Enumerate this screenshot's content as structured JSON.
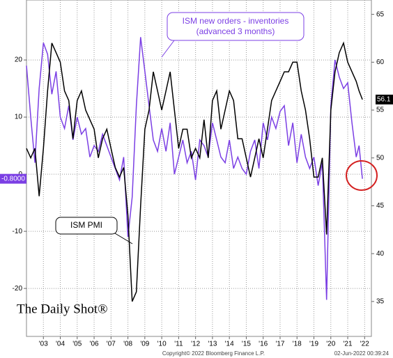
{
  "chart_data": {
    "type": "line",
    "annotations": {
      "series_callout": [
        "ISM new orders - inventories",
        "(advanced 3 months)"
      ],
      "pmi_callout": "ISM PMI",
      "brand": "The Daily Shot®",
      "copyright": "Copyright© 2022 Bloomberg Finance L.P.",
      "timestamp": "02-Jun-2022 00:39:24"
    },
    "x": [
      2002.5,
      2002.75,
      2003,
      2003.25,
      2003.5,
      2003.75,
      2004,
      2004.25,
      2004.5,
      2004.75,
      2005,
      2005.25,
      2005.5,
      2005.75,
      2006,
      2006.25,
      2006.5,
      2006.75,
      2007,
      2007.25,
      2007.5,
      2007.75,
      2008,
      2008.25,
      2008.5,
      2008.75,
      2009,
      2009.25,
      2009.5,
      2009.75,
      2010,
      2010.25,
      2010.5,
      2010.75,
      2011,
      2011.25,
      2011.5,
      2011.75,
      2012,
      2012.25,
      2012.5,
      2012.75,
      2013,
      2013.25,
      2013.5,
      2013.75,
      2014,
      2014.25,
      2014.5,
      2014.75,
      2015,
      2015.25,
      2015.5,
      2015.75,
      2016,
      2016.25,
      2016.5,
      2016.75,
      2017,
      2017.25,
      2017.5,
      2017.75,
      2018,
      2018.25,
      2018.5,
      2018.75,
      2019,
      2019.25,
      2019.5,
      2019.75,
      2020,
      2020.25,
      2020.5,
      2020.75,
      2021,
      2021.25,
      2021.5,
      2021.75,
      2022,
      2022.17,
      2022.37
    ],
    "series": [
      {
        "name": "ISM new orders - inventories (advanced 3 months)",
        "color": "#7b3fe4",
        "axis": "y",
        "end_label": "-0.8000",
        "values": [
          19,
          10,
          2,
          15,
          23,
          21,
          14,
          18,
          10,
          8,
          12,
          6,
          10,
          7,
          8,
          3,
          5,
          4,
          7,
          5,
          3,
          1,
          -1,
          3,
          -11,
          -4,
          12,
          24,
          18,
          12,
          6,
          4,
          8,
          4,
          9,
          0,
          3,
          6,
          2,
          4,
          -1,
          6,
          5,
          3,
          9,
          6,
          3,
          2,
          6,
          1,
          3,
          1,
          0,
          4,
          6,
          1,
          9,
          6,
          10,
          8,
          11,
          12,
          5,
          9,
          2,
          7,
          3,
          1,
          3,
          -2,
          2,
          -22,
          12,
          20,
          17,
          15,
          16,
          9,
          3,
          5,
          -0.8
        ]
      },
      {
        "name": "ISM PMI",
        "color": "#000000",
        "axis": "y2",
        "end_label": "56.1",
        "values": [
          51,
          50,
          51,
          46,
          51,
          57,
          62,
          61,
          60,
          57,
          56,
          52,
          56,
          57,
          55,
          54,
          53,
          50,
          52,
          53,
          51,
          49,
          48,
          49,
          44,
          35,
          36,
          45,
          53,
          55,
          59,
          57,
          55,
          57,
          59,
          55,
          51,
          53,
          53,
          50,
          51,
          50,
          54,
          50,
          56,
          57,
          53,
          55,
          57,
          56,
          52,
          52,
          50,
          48,
          50,
          52,
          50,
          53,
          56,
          57,
          58,
          59,
          59,
          60,
          60,
          57,
          55,
          52,
          48,
          48,
          50,
          42,
          55,
          59,
          61,
          62,
          60,
          59,
          58,
          57,
          56.1
        ]
      }
    ],
    "xlim": [
      2002.5,
      2022.9
    ],
    "xticks": [
      {
        "value": 2003.5,
        "label": "'03"
      },
      {
        "value": 2004.5,
        "label": "'04"
      },
      {
        "value": 2005.5,
        "label": "'05"
      },
      {
        "value": 2006.5,
        "label": "'06"
      },
      {
        "value": 2007.5,
        "label": "'07"
      },
      {
        "value": 2008.5,
        "label": "'08"
      },
      {
        "value": 2009.5,
        "label": "'09"
      },
      {
        "value": 2010.5,
        "label": "'10"
      },
      {
        "value": 2011.5,
        "label": "'11"
      },
      {
        "value": 2012.5,
        "label": "'12"
      },
      {
        "value": 2013.5,
        "label": "'13"
      },
      {
        "value": 2014.5,
        "label": "'14"
      },
      {
        "value": 2015.5,
        "label": "'15"
      },
      {
        "value": 2016.5,
        "label": "'16"
      },
      {
        "value": 2017.5,
        "label": "'17"
      },
      {
        "value": 2018.5,
        "label": "'18"
      },
      {
        "value": 2019.5,
        "label": "'19"
      },
      {
        "value": 2020.5,
        "label": "'20"
      },
      {
        "value": 2021.5,
        "label": "'21"
      },
      {
        "value": 2022.5,
        "label": "'22"
      }
    ],
    "ylim": [
      -28.4,
      30.5
    ],
    "yticks": [
      -20,
      -10,
      0,
      10,
      20
    ],
    "y2lim": [
      31.35,
      66.5
    ],
    "y2ticks": [
      35,
      40,
      45,
      50,
      55,
      60,
      65
    ],
    "grid": true
  }
}
